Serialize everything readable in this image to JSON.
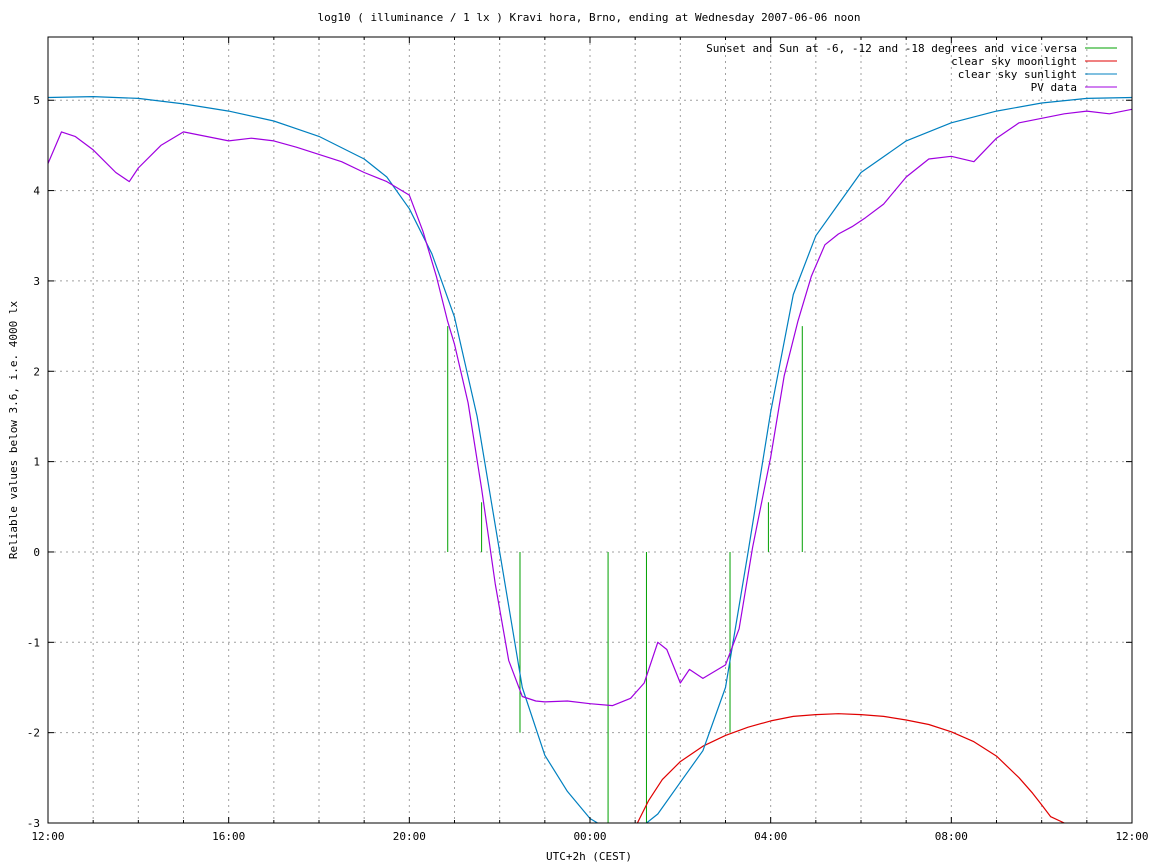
{
  "chart_data": {
    "type": "line",
    "title": "log10 ( illuminance / 1 lx ) Kravi hora, Brno, ending at Wednesday 2007-06-06 noon",
    "xlabel": "UTC+2h (CEST)",
    "ylabel": "Reliable values below 3.6, i.e. 4000 lx",
    "x_unit": "hours since 2007-06-05 12:00 (CEST)",
    "xlim": [
      0,
      24
    ],
    "ylim": [
      -3,
      5.7
    ],
    "x_ticks": [
      {
        "value": 0,
        "label": "12:00"
      },
      {
        "value": 4,
        "label": "16:00"
      },
      {
        "value": 8,
        "label": "20:00"
      },
      {
        "value": 12,
        "label": "00:00"
      },
      {
        "value": 16,
        "label": "04:00"
      },
      {
        "value": 20,
        "label": "08:00"
      },
      {
        "value": 24,
        "label": "12:00"
      }
    ],
    "y_ticks": [
      {
        "value": 5,
        "label": "5"
      },
      {
        "value": 4,
        "label": "4"
      },
      {
        "value": 3,
        "label": "3"
      },
      {
        "value": 2,
        "label": "2"
      },
      {
        "value": 1,
        "label": "1"
      },
      {
        "value": 0,
        "label": "0"
      },
      {
        "value": -1,
        "label": "-1"
      },
      {
        "value": -2,
        "label": "-2"
      },
      {
        "value": -3,
        "label": "-3"
      }
    ],
    "grid": true,
    "legend_position": "top-right",
    "series": [
      {
        "name": "Sunset and Sun at -6, -12 and -18 degrees and vice versa",
        "color": "#00a000",
        "kind": "vlines",
        "lines": [
          {
            "x": 8.85,
            "y": [
              0,
              2.5
            ]
          },
          {
            "x": 9.6,
            "y": [
              0,
              0.55
            ]
          },
          {
            "x": 10.45,
            "y": [
              -2.0,
              0
            ]
          },
          {
            "x": 12.4,
            "y": [
              -3,
              0
            ]
          },
          {
            "x": 13.25,
            "y": [
              -3,
              0
            ]
          },
          {
            "x": 15.1,
            "y": [
              -2.0,
              0
            ]
          },
          {
            "x": 15.95,
            "y": [
              0,
              0.55
            ]
          },
          {
            "x": 16.7,
            "y": [
              0,
              2.5
            ]
          }
        ]
      },
      {
        "name": "clear sky moonlight",
        "color": "#e00000",
        "x": [
          13.05,
          13.3,
          13.6,
          14.0,
          14.5,
          15.0,
          15.5,
          16.0,
          16.5,
          17.0,
          17.5,
          18.0,
          18.5,
          19.0,
          19.5,
          20.0,
          20.5,
          21.0,
          21.5,
          21.8,
          22.0,
          22.2,
          22.5
        ],
        "y": [
          -3.0,
          -2.75,
          -2.52,
          -2.32,
          -2.15,
          -2.03,
          -1.94,
          -1.87,
          -1.82,
          -1.8,
          -1.79,
          -1.8,
          -1.82,
          -1.86,
          -1.91,
          -1.99,
          -2.1,
          -2.26,
          -2.5,
          -2.67,
          -2.8,
          -2.93,
          -3.0
        ]
      },
      {
        "name": "clear sky sunlight",
        "color": "#0080c0",
        "x": [
          0,
          1,
          2,
          3,
          4,
          5,
          6,
          7,
          7.5,
          8,
          8.5,
          9,
          9.5,
          10,
          10.5,
          11,
          11.5,
          12,
          12.5,
          13,
          13.5,
          14,
          14.5,
          15,
          15.5,
          16,
          16.5,
          17,
          17.5,
          18,
          19,
          20,
          21,
          22,
          23,
          24
        ],
        "y": [
          5.03,
          5.04,
          5.02,
          4.96,
          4.88,
          4.77,
          4.6,
          4.35,
          4.15,
          3.8,
          3.3,
          2.6,
          1.5,
          0.0,
          -1.5,
          -2.25,
          -2.65,
          -2.95,
          -3.1,
          -3.1,
          -2.9,
          -2.55,
          -2.2,
          -1.5,
          0.0,
          1.55,
          2.85,
          3.5,
          3.85,
          4.2,
          4.55,
          4.75,
          4.88,
          4.97,
          5.02,
          5.03
        ]
      },
      {
        "name": "PV data",
        "color": "#a000e0",
        "x": [
          0,
          0.3,
          0.6,
          1,
          1.5,
          1.8,
          2,
          2.5,
          3,
          3.5,
          4,
          4.5,
          5,
          5.5,
          6,
          6.5,
          7,
          7.5,
          8,
          8.3,
          8.6,
          8.85,
          9,
          9.3,
          9.6,
          9.9,
          10.2,
          10.5,
          10.8,
          11,
          11.5,
          12,
          12.5,
          12.9,
          13.2,
          13.5,
          13.7,
          14,
          14.2,
          14.5,
          15,
          15.3,
          15.6,
          16,
          16.3,
          16.6,
          16.9,
          17.2,
          17.5,
          17.8,
          18.1,
          18.5,
          19,
          19.5,
          20,
          20.5,
          21,
          21.5,
          22,
          22.5,
          23,
          23.5,
          24
        ],
        "y": [
          4.3,
          4.65,
          4.6,
          4.45,
          4.2,
          4.1,
          4.25,
          4.5,
          4.65,
          4.6,
          4.55,
          4.58,
          4.55,
          4.48,
          4.4,
          4.32,
          4.2,
          4.1,
          3.95,
          3.55,
          3.05,
          2.55,
          2.3,
          1.65,
          0.7,
          -0.35,
          -1.2,
          -1.6,
          -1.65,
          -1.66,
          -1.65,
          -1.68,
          -1.7,
          -1.62,
          -1.45,
          -1.0,
          -1.08,
          -1.45,
          -1.3,
          -1.4,
          -1.25,
          -0.85,
          0.05,
          1.05,
          1.95,
          2.55,
          3.05,
          3.4,
          3.52,
          3.6,
          3.7,
          3.85,
          4.15,
          4.35,
          4.38,
          4.32,
          4.58,
          4.75,
          4.8,
          4.85,
          4.88,
          4.85,
          4.9
        ]
      }
    ]
  }
}
